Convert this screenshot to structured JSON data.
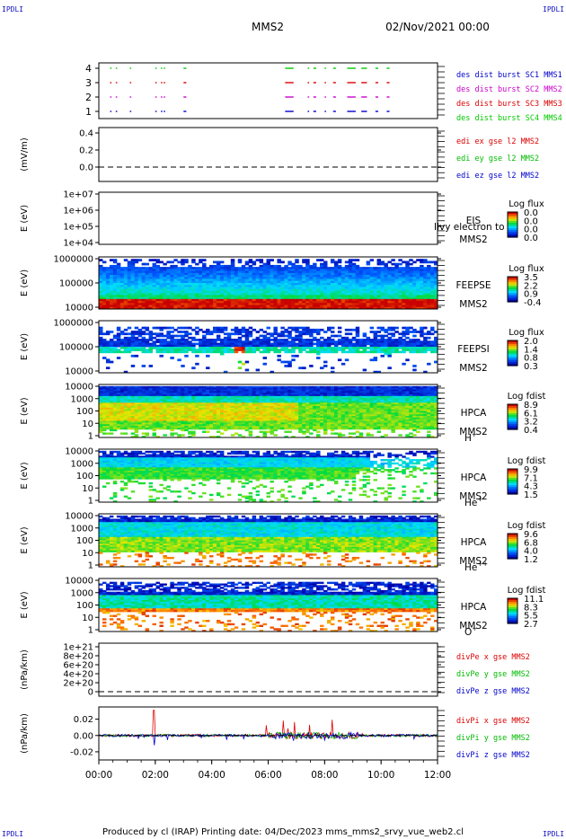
{
  "corner_label": "IPDLI",
  "header": {
    "title": "MMS2",
    "datetime": "02/Nov/2021 00:00"
  },
  "footer": "Produced by cl (IRAP)   Printing date: 04/Dec/2023   mms_mms2_srvy_vue_web2.cl",
  "chart_data": [
    {
      "id": "burst",
      "type": "scatter",
      "yticks": [
        "1",
        "2",
        "3",
        "4"
      ],
      "legend": [
        {
          "text": "des dist burst SC1 MMS1",
          "color": "#0000cc"
        },
        {
          "text": "des dist burst SC2 MMS2",
          "color": "#cc00cc"
        },
        {
          "text": "des dist burst SC3 MMS3",
          "color": "#dd0000"
        },
        {
          "text": "des dist burst SC4 MMS4",
          "color": "#00cc00"
        }
      ],
      "segments_hours": [
        [
          0.4,
          0.45
        ],
        [
          0.6,
          0.65
        ],
        [
          1.1,
          1.15
        ],
        [
          2.0,
          2.05
        ],
        [
          2.2,
          2.25
        ],
        [
          2.3,
          2.35
        ],
        [
          3.0,
          3.1
        ],
        [
          6.6,
          6.9
        ],
        [
          7.4,
          7.45
        ],
        [
          7.6,
          7.7
        ],
        [
          8.0,
          8.05
        ],
        [
          8.3,
          8.4
        ],
        [
          8.8,
          9.1
        ],
        [
          9.3,
          9.5
        ],
        [
          9.8,
          9.9
        ],
        [
          10.2,
          10.3
        ]
      ]
    },
    {
      "id": "edi",
      "type": "line",
      "ylabel": "(mV/m)",
      "yticks": [
        "0.4",
        "0.2",
        "0.0"
      ],
      "legend": [
        {
          "text": "edi ex gse l2 MMS2",
          "color": "#dd0000"
        },
        {
          "text": "edi ey gse l2 MMS2",
          "color": "#00bb00"
        },
        {
          "text": "edi ez gse l2 MMS2",
          "color": "#0000cc"
        }
      ]
    },
    {
      "id": "eis",
      "type": "heatmap",
      "ylabel": "E (eV)",
      "yticks": [
        "1e+07",
        "1e+06",
        "1e+05",
        "1e+04"
      ],
      "instrument": "EIS",
      "spacecraft": "MMS2",
      "overlay_text": "Ilvy electron to",
      "cbar_title": "Log flux",
      "cbar_ticks": [
        "0.0",
        "0.0",
        "0.0",
        "0.0"
      ]
    },
    {
      "id": "feepse",
      "type": "heatmap",
      "ylabel": "E (eV)",
      "yticks": [
        "1000000",
        "100000",
        "10000"
      ],
      "instrument": "FEEPSE",
      "spacecraft": "MMS2",
      "cbar_title": "Log flux",
      "cbar_ticks": [
        "3.5",
        "2.2",
        "0.9",
        "-0.4"
      ]
    },
    {
      "id": "feepsi",
      "type": "heatmap",
      "ylabel": "E (eV)",
      "yticks": [
        "1000000",
        "100000",
        "10000"
      ],
      "instrument": "FEEPSI",
      "spacecraft": "MMS2",
      "cbar_title": "Log flux",
      "cbar_ticks": [
        "2.0",
        "1.4",
        "0.8",
        "0.3"
      ]
    },
    {
      "id": "hpca_h",
      "type": "heatmap",
      "ylabel": "E (eV)",
      "yticks": [
        "10000",
        "1000",
        "100",
        "10",
        "1"
      ],
      "instrument": "HPCA",
      "spacecraft": "MMS2",
      "species": "H",
      "species_charge": "+",
      "cbar_title": "Log fdist",
      "cbar_ticks": [
        "8.9",
        "6.1",
        "3.2",
        "0.4"
      ]
    },
    {
      "id": "hpca_he1",
      "type": "heatmap",
      "ylabel": "E (eV)",
      "yticks": [
        "10000",
        "1000",
        "100",
        "10",
        "1"
      ],
      "instrument": "HPCA",
      "spacecraft": "MMS2",
      "species": "He",
      "species_charge": "+",
      "cbar_title": "Log fdist",
      "cbar_ticks": [
        "9.9",
        "7.1",
        "4.3",
        "1.5"
      ]
    },
    {
      "id": "hpca_he2",
      "type": "heatmap",
      "ylabel": "E (eV)",
      "yticks": [
        "10000",
        "1000",
        "100",
        "10",
        "1"
      ],
      "instrument": "HPCA",
      "spacecraft": "MMS2",
      "species": "He",
      "species_charge": "++",
      "cbar_title": "Log fdist",
      "cbar_ticks": [
        "9.6",
        "6.8",
        "4.0",
        "1.2"
      ]
    },
    {
      "id": "hpca_o",
      "type": "heatmap",
      "ylabel": "E (eV)",
      "yticks": [
        "10000",
        "1000",
        "100",
        "10",
        "1"
      ],
      "instrument": "HPCA",
      "spacecraft": "MMS2",
      "species": "O",
      "species_charge": "+",
      "cbar_title": "Log fdist",
      "cbar_ticks": [
        "11.1",
        "8.3",
        "5.5",
        "2.7"
      ]
    },
    {
      "id": "divpe",
      "type": "line",
      "ylabel": "(nPa/km)",
      "yticks": [
        "1e+21",
        "8e+20",
        "6e+20",
        "4e+20",
        "2e+20",
        "0"
      ],
      "legend": [
        {
          "text": "divPe x gse MMS2",
          "color": "#dd0000"
        },
        {
          "text": "divPe y gse MMS2",
          "color": "#00bb00"
        },
        {
          "text": "divPe z gse MMS2",
          "color": "#0000cc"
        }
      ]
    },
    {
      "id": "divpi",
      "type": "line",
      "ylabel": "(nPa/km)",
      "yticks": [
        "0.02",
        "0.00",
        "-0.02"
      ],
      "ylim": [
        -0.03,
        0.035
      ],
      "legend": [
        {
          "text": "divPi x gse MMS2",
          "color": "#dd0000"
        },
        {
          "text": "divPi y gse MMS2",
          "color": "#00bb00"
        },
        {
          "text": "divPi z gse MMS2",
          "color": "#0000cc"
        }
      ]
    }
  ],
  "xaxis": {
    "ticks": [
      "00:00",
      "02:00",
      "04:00",
      "06:00",
      "08:00",
      "10:00",
      "12:00"
    ],
    "range_hours": [
      0,
      12
    ]
  }
}
